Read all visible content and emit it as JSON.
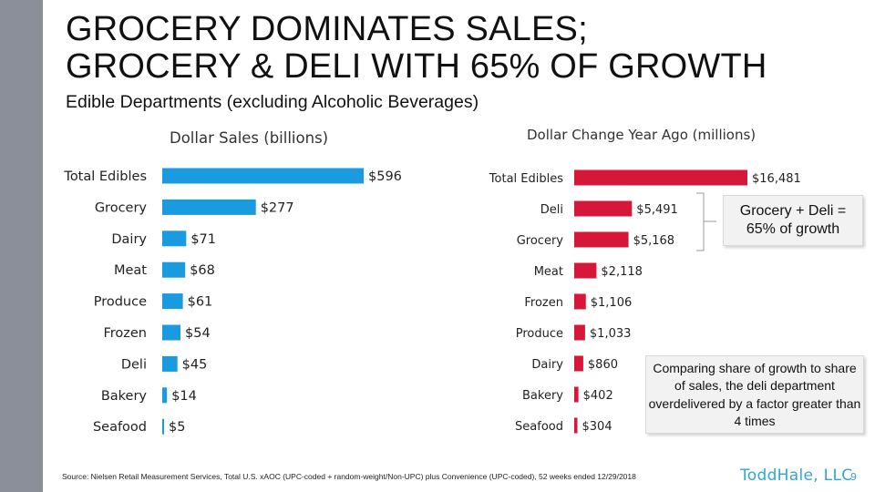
{
  "slide": {
    "title_line1": "GROCERY DOMINATES SALES;",
    "title_line2": "GROCERY & DELI WITH 65% OF GROWTH",
    "subtitle": "Edible Departments (excluding Alcoholic Beverages)",
    "callout_growth": "Grocery + Deli = 65% of growth",
    "callout_compare": "Comparing share of growth to share of sales, the deli department overdelivered by a factor greater than 4 times",
    "source": "Source: Nielsen Retail Measurement Services, Total U.S. xAOC (UPC-coded + random-weight/Non-UPC) plus Convenience (UPC-coded), 52 weeks ended 12/29/2018",
    "logo": "ToddHale, LLC",
    "page_number": "9",
    "colors": {
      "left_bar": "#1a9be0",
      "right_bar": "#d6173a",
      "side_band": "#8a8f99",
      "logo": "#2ea7d6"
    }
  },
  "chart_data": [
    {
      "type": "bar",
      "orientation": "horizontal",
      "title": "Dollar Sales (billions)",
      "categories": [
        "Total Edibles",
        "Grocery",
        "Dairy",
        "Meat",
        "Produce",
        "Frozen",
        "Deli",
        "Bakery",
        "Seafood"
      ],
      "values": [
        596,
        277,
        71,
        68,
        61,
        54,
        45,
        14,
        5
      ],
      "labels": [
        "$596",
        "$277",
        "$71",
        "$68",
        "$61",
        "$54",
        "$45",
        "$14",
        "$5"
      ],
      "unit": "billions",
      "xlim": [
        0,
        596
      ],
      "grid": false,
      "color": "#1a9be0"
    },
    {
      "type": "bar",
      "orientation": "horizontal",
      "title": "Dollar Change Year Ago (millions)",
      "categories": [
        "Total Edibles",
        "Deli",
        "Grocery",
        "Meat",
        "Frozen",
        "Produce",
        "Dairy",
        "Bakery",
        "Seafood"
      ],
      "values": [
        16481,
        5491,
        5168,
        2118,
        1106,
        1033,
        860,
        402,
        304
      ],
      "labels": [
        "$16,481",
        "$5,491",
        "$5,168",
        "$2,118",
        "$1,106",
        "$1,033",
        "$860",
        "$402",
        "$304"
      ],
      "unit": "millions",
      "xlim": [
        0,
        16481
      ],
      "grid": false,
      "color": "#d6173a"
    }
  ]
}
